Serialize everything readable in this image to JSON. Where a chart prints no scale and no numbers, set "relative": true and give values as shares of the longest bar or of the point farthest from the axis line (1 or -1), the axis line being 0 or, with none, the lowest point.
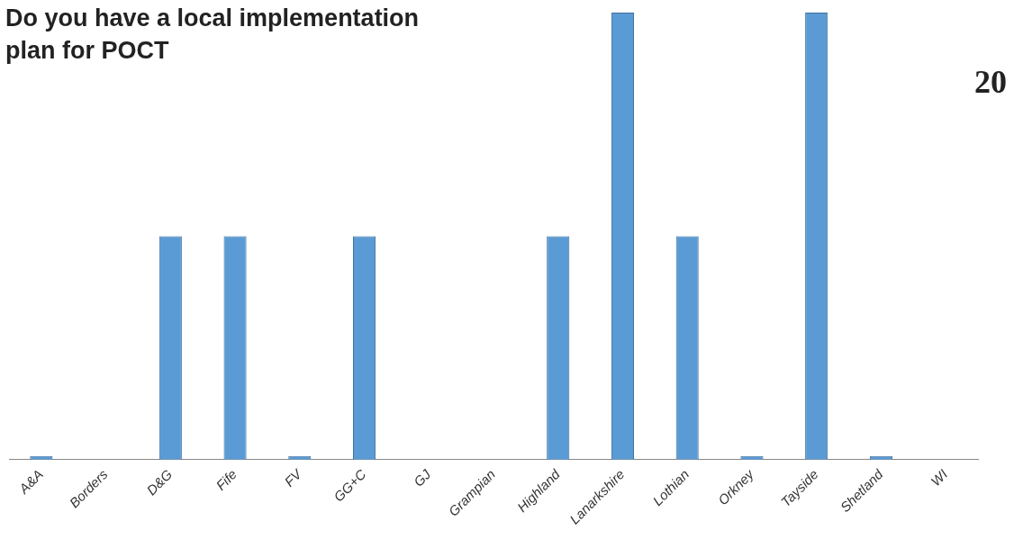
{
  "chart_data": {
    "type": "bar",
    "title": "Do you have a local implementation plan for POCT",
    "annotations": [
      "20"
    ],
    "categories": [
      "A&A",
      "Borders",
      "D&G",
      "Fife",
      "FV",
      "GG+C",
      "GJ",
      "Grampian",
      "Highland",
      "Lanarkshire",
      "Lothian",
      "Orkney",
      "Tayside",
      "Shetland",
      "WI"
    ],
    "values": [
      0,
      null,
      0.5,
      0.5,
      0,
      0.5,
      null,
      null,
      0.5,
      1,
      0.5,
      0,
      1,
      0,
      null
    ],
    "color": "#5b9bd5",
    "relative": true,
    "grid": false,
    "legend": false
  }
}
